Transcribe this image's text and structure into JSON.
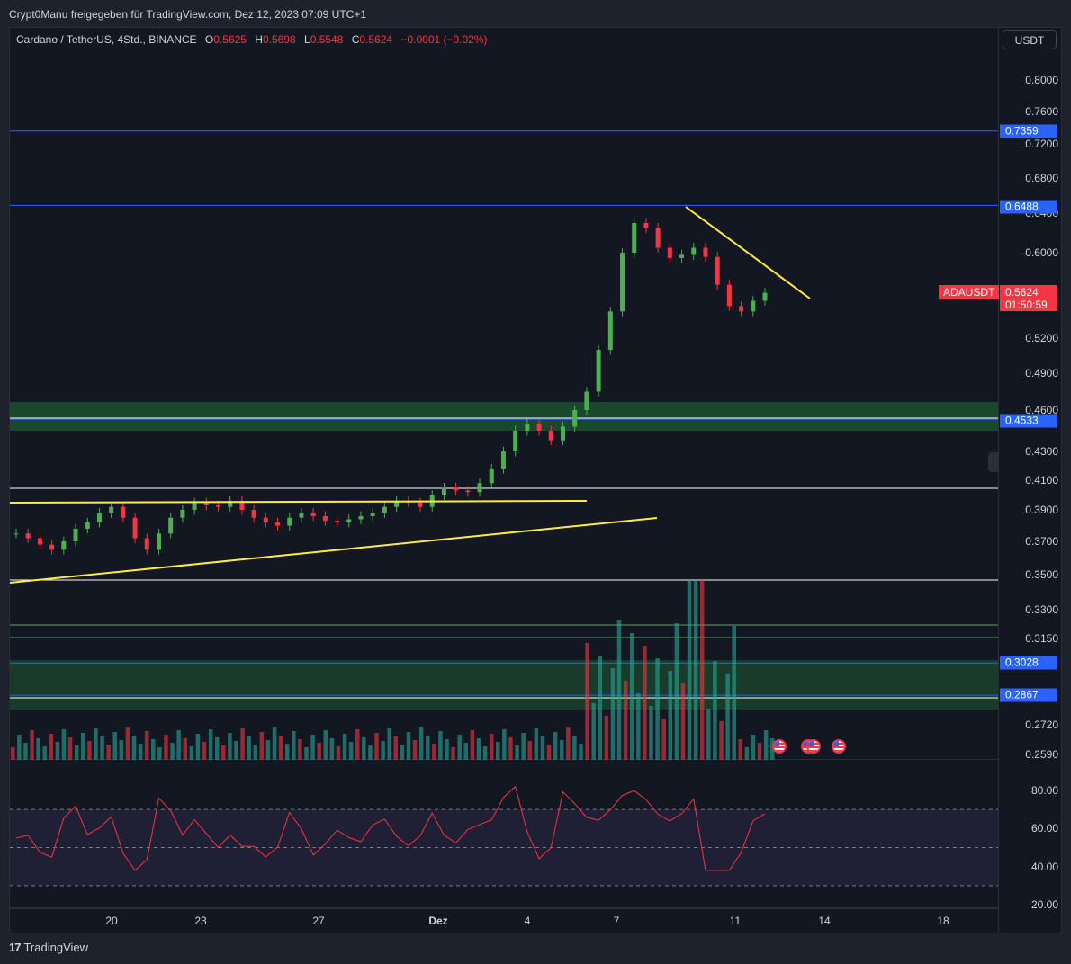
{
  "header": {
    "credit": "Crypt0Manu freigegeben für TradingView.com, Dez 12, 2023 07:09 UTC+1"
  },
  "legend": {
    "symbol": "Cardano / TetherUS, 4Std., BINANCE",
    "o_label": "O",
    "o_value": "0.5625",
    "h_label": "H",
    "h_value": "0.5698",
    "l_label": "L",
    "l_value": "0.5548",
    "c_label": "C",
    "c_value": "0.5624",
    "change": "−0.0001 (−0.02%)"
  },
  "currency": "USDT",
  "price_axis": [
    "0.8000",
    "0.7600",
    "0.7200",
    "0.6800",
    "0.6400",
    "0.6000",
    "0.5200",
    "0.4900",
    "0.4600",
    "0.4300",
    "0.4100",
    "0.3900",
    "0.3700",
    "0.3500",
    "0.3300",
    "0.3150",
    "0.2720",
    "0.2590"
  ],
  "rsi_axis": [
    "80.00",
    "60.00",
    "40.00",
    "20.00"
  ],
  "tags": {
    "level1": "0.7359",
    "level2": "0.6488",
    "level3": "0.4533",
    "level4": "0.3028",
    "level5": "0.2867",
    "symbol_tag": "ADAUSDT",
    "last_price": "0.5624",
    "countdown": "01:50:59"
  },
  "time_axis": [
    "20",
    "23",
    "27",
    "Dez",
    "4",
    "7",
    "11",
    "14",
    "18"
  ],
  "footer": {
    "brand": "TradingView"
  },
  "colors": {
    "up": "#26a69a",
    "down": "#f23645",
    "candle_up": "#4caf50",
    "candle_down": "#f23645",
    "blue_line": "#2962ff",
    "trend_line": "#ffeb3b",
    "rsi": "#f23645",
    "zone": "#1e5a32"
  },
  "chart_data": {
    "type": "candlestick",
    "title": "Cardano / TetherUS, 4Std., BINANCE",
    "series": [
      {
        "name": "ADAUSDT",
        "x_labels": [
          "20",
          "23",
          "27",
          "Dez",
          "4",
          "7",
          "11",
          "14",
          "18"
        ],
        "close_path": [
          0.375,
          0.372,
          0.368,
          0.365,
          0.37,
          0.378,
          0.382,
          0.388,
          0.392,
          0.385,
          0.372,
          0.365,
          0.375,
          0.385,
          0.39,
          0.395,
          0.393,
          0.392,
          0.396,
          0.39,
          0.385,
          0.382,
          0.38,
          0.385,
          0.388,
          0.386,
          0.383,
          0.382,
          0.384,
          0.386,
          0.388,
          0.392,
          0.396,
          0.395,
          0.392,
          0.4,
          0.405,
          0.403,
          0.402,
          0.408,
          0.418,
          0.43,
          0.445,
          0.45,
          0.445,
          0.438,
          0.448,
          0.46,
          0.475,
          0.51,
          0.545,
          0.6,
          0.63,
          0.625,
          0.605,
          0.595,
          0.598,
          0.605,
          0.596,
          0.57,
          0.55,
          0.545,
          0.555,
          0.5624
        ]
      }
    ],
    "horizontal_levels": [
      0.7359,
      0.6488,
      0.4533,
      0.3028,
      0.2867
    ],
    "last": 0.5624,
    "y_range": [
      0.255,
      0.82
    ],
    "volume": true,
    "rsi": {
      "range": [
        20,
        80
      ],
      "bands": [
        30,
        70
      ]
    }
  }
}
